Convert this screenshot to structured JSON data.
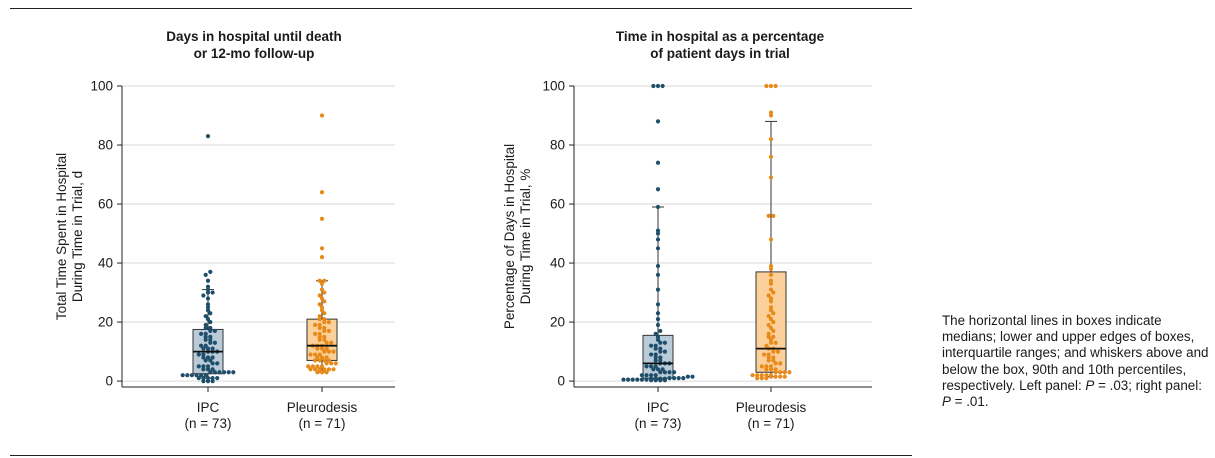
{
  "chart_data": [
    {
      "type": "box-strip",
      "title": [
        "Days in hospital until death",
        "or 12-mo follow-up"
      ],
      "ylabel": [
        "Total Time Spent in Hospital",
        "During Time in Trial, d"
      ],
      "ylim": [
        -2,
        100
      ],
      "yticks": [
        0,
        20,
        40,
        60,
        80,
        100
      ],
      "grid": true,
      "categories": [
        {
          "name": "IPC",
          "n_label": "(n = 73)"
        },
        {
          "name": "Pleurodesis",
          "n_label": "(n = 71)"
        }
      ],
      "series": [
        {
          "name": "IPC",
          "box": {
            "q1": 2.5,
            "median": 10,
            "q3": 17.5,
            "p10": 1,
            "p90": 31
          },
          "points": [
            0,
            0,
            0,
            1,
            1,
            1,
            1,
            1,
            2,
            2,
            2,
            2,
            2,
            2,
            3,
            3,
            3,
            3,
            3,
            3,
            4,
            4,
            4,
            5,
            5,
            5,
            6,
            6,
            7,
            7,
            8,
            8,
            8,
            9,
            9,
            10,
            10,
            10,
            11,
            11,
            11,
            12,
            12,
            13,
            13,
            14,
            14,
            15,
            15,
            16,
            16,
            17,
            17,
            18,
            18,
            19,
            20,
            21,
            22,
            23,
            24,
            25,
            26,
            28,
            29,
            30,
            30,
            31,
            32,
            34,
            36,
            37,
            83
          ]
        },
        {
          "name": "Pleurodesis",
          "box": {
            "q1": 7,
            "median": 12,
            "q3": 21,
            "p10": 3,
            "p90": 34
          },
          "points": [
            3,
            3,
            3,
            4,
            4,
            4,
            4,
            4,
            4,
            5,
            5,
            5,
            5,
            6,
            6,
            6,
            7,
            7,
            7,
            7,
            8,
            8,
            8,
            9,
            9,
            9,
            10,
            10,
            10,
            11,
            11,
            11,
            12,
            12,
            12,
            13,
            13,
            14,
            14,
            15,
            15,
            16,
            16,
            17,
            17,
            18,
            18,
            19,
            19,
            20,
            20,
            21,
            21,
            22,
            23,
            24,
            25,
            26,
            27,
            28,
            29,
            30,
            31,
            33,
            34,
            34,
            42,
            45,
            55,
            64,
            90
          ]
        }
      ]
    },
    {
      "type": "box-strip",
      "title": [
        "Time in hospital as a percentage",
        "of patient days in trial"
      ],
      "ylabel": [
        "Percentage of Days in Hospital",
        "During Time in Trial, %"
      ],
      "ylim": [
        -2,
        100
      ],
      "yticks": [
        0,
        20,
        40,
        60,
        80,
        100
      ],
      "grid": true,
      "categories": [
        {
          "name": "IPC",
          "n_label": "(n = 73)"
        },
        {
          "name": "Pleurodesis",
          "n_label": "(n = 71)"
        }
      ],
      "series": [
        {
          "name": "IPC",
          "box": {
            "q1": 1,
            "median": 6,
            "q3": 15.5,
            "p10": 0.5,
            "p90": 59
          },
          "points": [
            0.3,
            0.3,
            0.3,
            0.3,
            0.5,
            0.5,
            0.5,
            0.5,
            0.5,
            0.5,
            0.8,
            0.8,
            0.8,
            0.8,
            1,
            1,
            1,
            1,
            1.5,
            1.5,
            2,
            2,
            2,
            2,
            3,
            3,
            3,
            3,
            4,
            4,
            4,
            5,
            5,
            5,
            6,
            6,
            6,
            7,
            7,
            8,
            8,
            9,
            9,
            10,
            10,
            11,
            11,
            12,
            12,
            13,
            13,
            14,
            15,
            16,
            17,
            19,
            21,
            23,
            26,
            31,
            36,
            39,
            45,
            48,
            50,
            51,
            59,
            65,
            74,
            88,
            100,
            100,
            100
          ]
        },
        {
          "name": "Pleurodesis",
          "box": {
            "q1": 3,
            "median": 11,
            "q3": 37,
            "p10": 1.5,
            "p90": 88
          },
          "points": [
            1,
            1,
            1,
            1.5,
            1.5,
            1.5,
            1.5,
            2,
            2,
            2,
            2,
            2,
            3,
            3,
            3,
            3,
            4,
            4,
            4,
            5,
            5,
            5,
            6,
            6,
            7,
            7,
            8,
            8,
            9,
            9,
            10,
            10,
            11,
            11,
            12,
            13,
            13,
            14,
            15,
            15,
            16,
            17,
            18,
            19,
            20,
            21,
            22,
            23,
            24,
            25,
            27,
            28,
            29,
            30,
            31,
            33,
            34,
            36,
            38,
            39,
            48,
            56,
            56,
            69,
            76,
            82,
            90,
            91,
            100,
            100,
            100
          ]
        }
      ]
    }
  ],
  "colors": {
    "IPC": {
      "fill": "#b9cbd9",
      "point": "#1f4e6a"
    },
    "Pleurodesis": {
      "fill": "#fcd09a",
      "point": "#e88a1a"
    },
    "axis": "#222222",
    "grid": "#d9d9d9"
  },
  "caption": {
    "text": "The horizontal lines in boxes indicate medians; lower and upper edges of boxes, interquartile ranges; and whiskers above and below the box, 90th and 10th percentiles, respectively. Left panel: ",
    "p_label": "P",
    "left_p": " = .03; right panel: ",
    "p_label2": "P",
    "right_p": " = .01."
  }
}
